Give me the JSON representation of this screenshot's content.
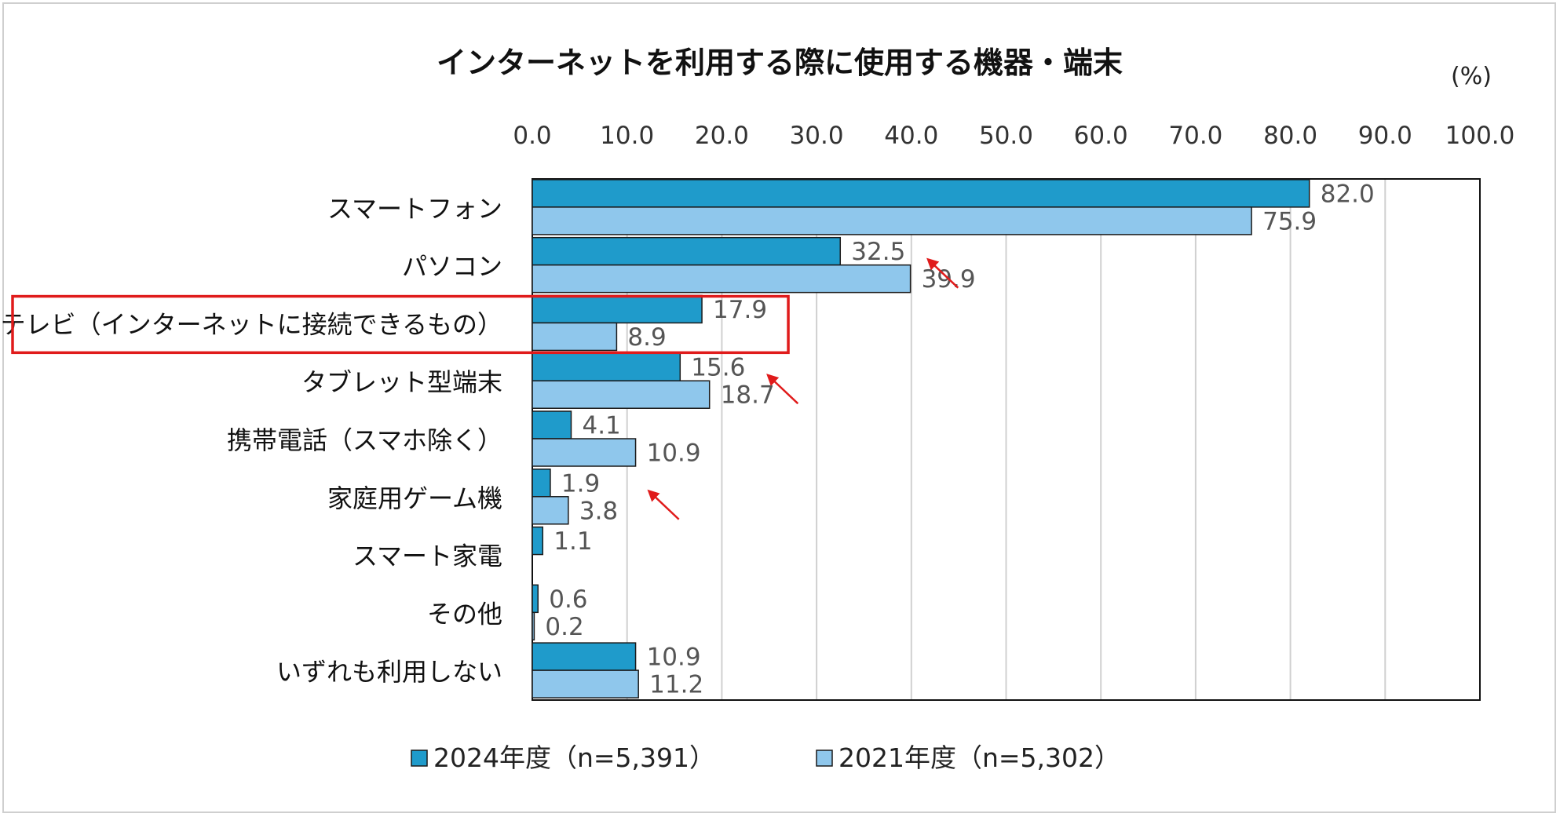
{
  "chart_data": {
    "type": "bar",
    "orientation": "horizontal",
    "title": "インターネットを利用する際に使用する機器・端末",
    "unit_label": "(%)",
    "categories": [
      "スマートフォン",
      "パソコン",
      "テレビ（インターネットに接続できるもの）",
      "タブレット型端末",
      "携帯電話（スマホ除く）",
      "家庭用ゲーム機",
      "スマート家電",
      "その他",
      "いずれも利用しない"
    ],
    "series": [
      {
        "name": "2024年度（n=5,391）",
        "color": "#1f9bcb",
        "values": [
          82.0,
          32.5,
          17.9,
          15.6,
          4.1,
          1.9,
          1.1,
          0.6,
          10.9
        ]
      },
      {
        "name": "2021年度（n=5,302）",
        "color": "#8fc7ec",
        "values": [
          75.9,
          39.9,
          8.9,
          18.7,
          10.9,
          3.8,
          null,
          0.2,
          11.2
        ]
      }
    ],
    "xlim": [
      0,
      100
    ],
    "xticks": [
      "0.0",
      "10.0",
      "20.0",
      "30.0",
      "40.0",
      "50.0",
      "60.0",
      "70.0",
      "80.0",
      "90.0",
      "100.0"
    ],
    "grid": true,
    "axis_position": "top",
    "legend_position": "bottom",
    "highlighted_category": "テレビ（インターネットに接続できるもの）",
    "highlight_color": "#e01b1b",
    "arrow_color": "#e01b1b",
    "arrow_annotations": [
      {
        "category": "パソコン"
      },
      {
        "category": "タブレット型端末"
      },
      {
        "category": "家庭用ゲーム機"
      }
    ]
  }
}
